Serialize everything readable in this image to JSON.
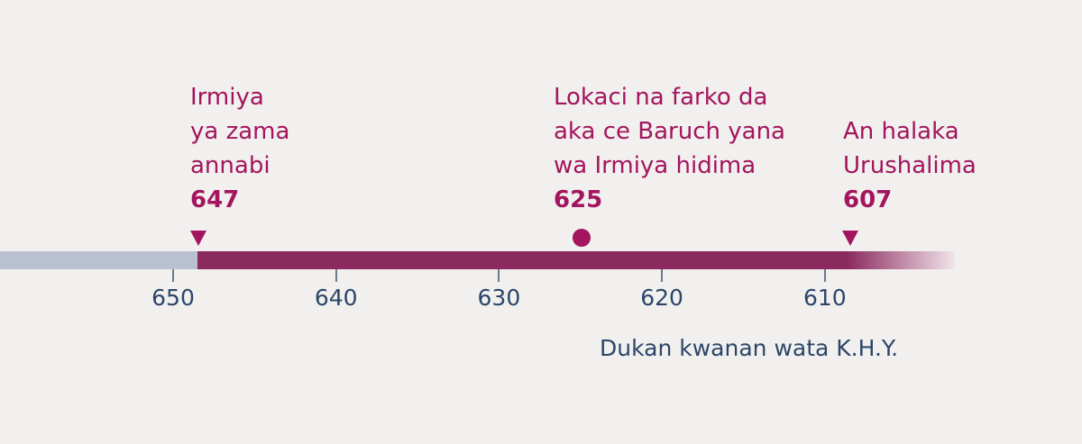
{
  "chart_data": {
    "type": "timeline",
    "axis": {
      "ticks": [
        650,
        640,
        630,
        620,
        610
      ],
      "label": "Dukan kwanan wata K.H.Y.",
      "reversed": true
    },
    "events": [
      {
        "lines": [
          "Irmiya",
          "ya zama",
          "annabi"
        ],
        "year": "647",
        "marker": "triangle-down"
      },
      {
        "lines": [
          "Lokaci na farko da",
          "aka ce Baruch yana",
          "wa Irmiya hidima"
        ],
        "year": "625",
        "marker": "circle"
      },
      {
        "lines": [
          "An halaka",
          "Urushalima"
        ],
        "year": "607",
        "marker": "triangle-down"
      }
    ],
    "colors": {
      "accent": "#a3155e",
      "bar": "#8a2a5e",
      "before": "#b9c0cf",
      "axis_text": "#2c4669"
    }
  }
}
